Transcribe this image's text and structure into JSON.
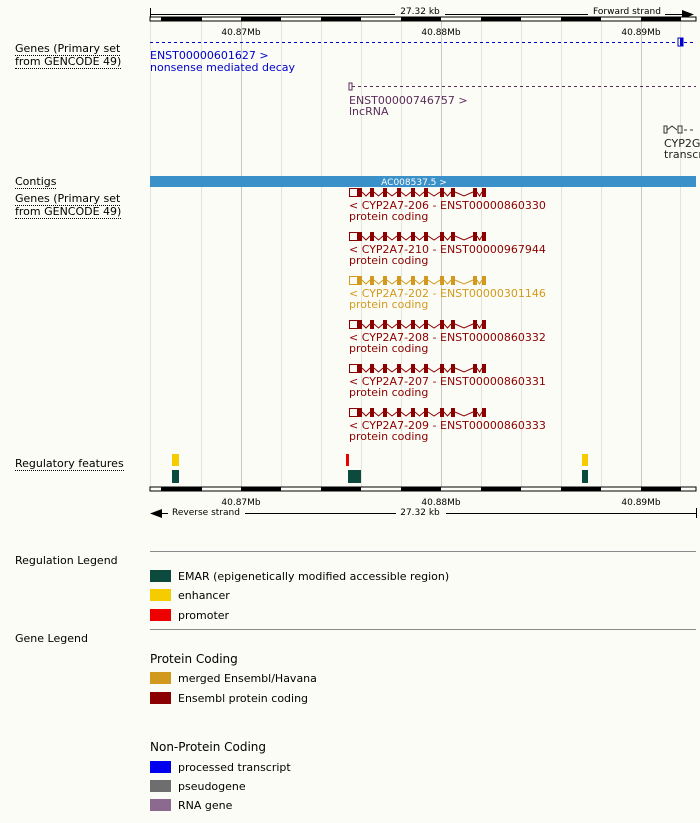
{
  "colors": {
    "noncoding_blue": "#0000cc",
    "lncrna": "#5a2c5a",
    "ensembl_coding": "#8b0000",
    "merged": "#d19a1f",
    "contig": "#3a90c8",
    "emar": "#0b4a3c",
    "enhancer": "#f5cc00",
    "promoter": "#ee0000"
  },
  "top_ruler": {
    "span_label": "27.32 kb",
    "strand_label": "Forward strand",
    "ticks": [
      "40.87Mb",
      "40.88Mb",
      "40.89Mb"
    ]
  },
  "bottom_ruler": {
    "span_label": "27.32 kb",
    "strand_label": "Reverse strand",
    "ticks": [
      "40.87Mb",
      "40.88Mb",
      "40.89Mb"
    ]
  },
  "track_labels": {
    "genes_forward": [
      "Genes (Primary set",
      "from GENCODE 49)"
    ],
    "contigs": "Contigs",
    "genes_reverse": [
      "Genes (Primary set",
      "from GENCODE 49)"
    ],
    "regulatory": "Regulatory features"
  },
  "forward_genes": [
    {
      "name": "ENST00000601627 >",
      "biotype": "nonsense mediated decay"
    },
    {
      "name": "ENST00000746757 >",
      "biotype": "lncRNA"
    },
    {
      "name": "CYP2G",
      "biotype": "transcr"
    }
  ],
  "contig": {
    "label": "AC008537.5 >"
  },
  "reverse_transcripts": [
    {
      "label": "< CYP2A7-206 - ENST00000860330",
      "biotype": "protein coding",
      "kind": "ensembl"
    },
    {
      "label": "< CYP2A7-210 - ENST00000967944",
      "biotype": "protein coding",
      "kind": "ensembl"
    },
    {
      "label": "< CYP2A7-202 - ENST00000301146",
      "biotype": "protein coding",
      "kind": "merged"
    },
    {
      "label": "< CYP2A7-208 - ENST00000860332",
      "biotype": "protein coding",
      "kind": "ensembl"
    },
    {
      "label": "< CYP2A7-207 - ENST00000860331",
      "biotype": "protein coding",
      "kind": "ensembl"
    },
    {
      "label": "< CYP2A7-209 - ENST00000860333",
      "biotype": "protein coding",
      "kind": "ensembl"
    }
  ],
  "regulation_legend": {
    "title": "Regulation Legend",
    "items": [
      {
        "label": "EMAR (epigenetically modified accessible region)",
        "color": "#0b4a3c"
      },
      {
        "label": "enhancer",
        "color": "#f5cc00"
      },
      {
        "label": "promoter",
        "color": "#ee0000"
      }
    ]
  },
  "gene_legend": {
    "title": "Gene Legend",
    "protein_coding": {
      "heading": "Protein Coding",
      "items": [
        {
          "label": "merged Ensembl/Havana",
          "color": "#d19a1f"
        },
        {
          "label": "Ensembl protein coding",
          "color": "#8b0000"
        }
      ]
    },
    "non_protein_coding": {
      "heading": "Non-Protein Coding",
      "items": [
        {
          "label": "processed transcript",
          "color": "#0000ee"
        },
        {
          "label": "pseudogene",
          "color": "#6e6e6e"
        },
        {
          "label": "RNA gene",
          "color": "#8c6a8f"
        }
      ]
    }
  }
}
